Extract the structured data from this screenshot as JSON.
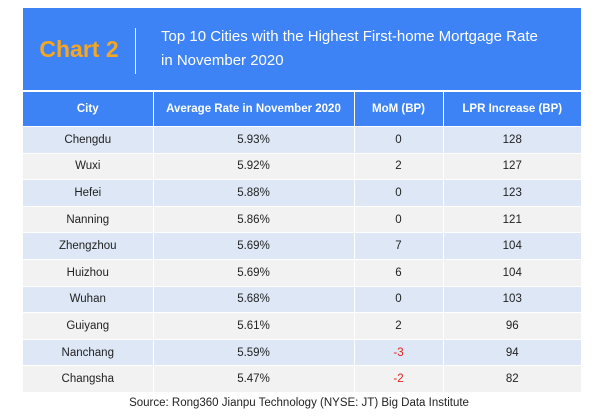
{
  "chart_label": "Chart 2",
  "title_line1": "Top 10 Cities with the Highest First-home Mortgage Rate",
  "title_line2": "in November 2020",
  "source": "Source: Rong360 Jianpu Technology (NYSE: JT) Big Data Institute",
  "colors": {
    "header": "#3d83f5",
    "badge": "#f5a623",
    "row_odd": "#dde7f5",
    "row_even": "#f2f2f2",
    "negative": "#e0231b"
  },
  "chart_data": {
    "type": "table",
    "columns": [
      "City",
      "Average Rate in November 2020",
      "MoM (BP)",
      "LPR Increase (BP)"
    ],
    "rows": [
      {
        "city": "Chengdu",
        "rate": "5.93%",
        "mom": 0,
        "lpr": 128
      },
      {
        "city": "Wuxi",
        "rate": "5.92%",
        "mom": 2,
        "lpr": 127
      },
      {
        "city": "Hefei",
        "rate": "5.88%",
        "mom": 0,
        "lpr": 123
      },
      {
        "city": "Nanning",
        "rate": "5.86%",
        "mom": 0,
        "lpr": 121
      },
      {
        "city": "Zhengzhou",
        "rate": "5.69%",
        "mom": 7,
        "lpr": 104
      },
      {
        "city": "Huizhou",
        "rate": "5.69%",
        "mom": 6,
        "lpr": 104
      },
      {
        "city": "Wuhan",
        "rate": "5.68%",
        "mom": 0,
        "lpr": 103
      },
      {
        "city": "Guiyang",
        "rate": "5.61%",
        "mom": 2,
        "lpr": 96
      },
      {
        "city": "Nanchang",
        "rate": "5.59%",
        "mom": -3,
        "lpr": 94
      },
      {
        "city": "Changsha",
        "rate": "5.47%",
        "mom": -2,
        "lpr": 82
      }
    ]
  }
}
